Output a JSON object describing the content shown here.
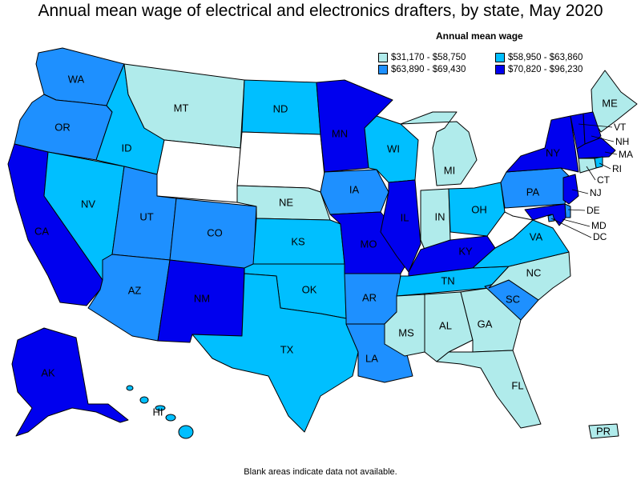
{
  "title": "Annual mean wage of electrical and electronics drafters, by state, May 2020",
  "legend": {
    "title": "Annual mean wage",
    "items": [
      {
        "label": "$31,170 - $58,750",
        "color": "#b0ebeb"
      },
      {
        "label": "$58,950 - $63,860",
        "color": "#00bfff"
      },
      {
        "label": "$63,890 - $69,430",
        "color": "#1e90ff"
      },
      {
        "label": "$70,820 - $96,230",
        "color": "#0000ee"
      }
    ]
  },
  "footnote": "Blank areas indicate data not available.",
  "colors": {
    "no_data": "#ffffff",
    "tier1": "#b0ebeb",
    "tier2": "#00bfff",
    "tier3": "#1e90ff",
    "tier4": "#0000ee"
  },
  "states": {
    "WA": {
      "label": "WA",
      "tier": "tier3"
    },
    "OR": {
      "label": "OR",
      "tier": "tier3"
    },
    "CA": {
      "label": "CA",
      "tier": "tier4"
    },
    "NV": {
      "label": "NV",
      "tier": "tier2"
    },
    "ID": {
      "label": "ID",
      "tier": "tier2"
    },
    "MT": {
      "label": "MT",
      "tier": "tier1"
    },
    "WY": {
      "label": "",
      "tier": "no_data"
    },
    "UT": {
      "label": "UT",
      "tier": "tier3"
    },
    "AZ": {
      "label": "AZ",
      "tier": "tier3"
    },
    "CO": {
      "label": "CO",
      "tier": "tier3"
    },
    "NM": {
      "label": "NM",
      "tier": "tier4"
    },
    "ND": {
      "label": "ND",
      "tier": "tier2"
    },
    "SD": {
      "label": "",
      "tier": "no_data"
    },
    "NE": {
      "label": "NE",
      "tier": "tier1"
    },
    "KS": {
      "label": "KS",
      "tier": "tier2"
    },
    "OK": {
      "label": "OK",
      "tier": "tier2"
    },
    "TX": {
      "label": "TX",
      "tier": "tier2"
    },
    "MN": {
      "label": "MN",
      "tier": "tier4"
    },
    "IA": {
      "label": "IA",
      "tier": "tier3"
    },
    "MO": {
      "label": "MO",
      "tier": "tier4"
    },
    "AR": {
      "label": "AR",
      "tier": "tier3"
    },
    "LA": {
      "label": "LA",
      "tier": "tier3"
    },
    "WI": {
      "label": "WI",
      "tier": "tier2"
    },
    "IL": {
      "label": "IL",
      "tier": "tier4"
    },
    "MI": {
      "label": "MI",
      "tier": "tier1"
    },
    "IN": {
      "label": "IN",
      "tier": "tier1"
    },
    "OH": {
      "label": "OH",
      "tier": "tier2"
    },
    "KY": {
      "label": "KY",
      "tier": "tier4"
    },
    "TN": {
      "label": "TN",
      "tier": "tier2"
    },
    "MS": {
      "label": "MS",
      "tier": "tier1"
    },
    "AL": {
      "label": "AL",
      "tier": "tier1"
    },
    "GA": {
      "label": "GA",
      "tier": "tier1"
    },
    "FL": {
      "label": "FL",
      "tier": "tier1"
    },
    "SC": {
      "label": "SC",
      "tier": "tier3"
    },
    "NC": {
      "label": "NC",
      "tier": "tier1"
    },
    "VA": {
      "label": "VA",
      "tier": "tier2"
    },
    "WV": {
      "label": "",
      "tier": "no_data"
    },
    "PA": {
      "label": "PA",
      "tier": "tier3"
    },
    "NY": {
      "label": "NY",
      "tier": "tier4"
    },
    "ME": {
      "label": "ME",
      "tier": "tier1"
    },
    "VT": {
      "label": "VT",
      "tier": "tier4"
    },
    "NH": {
      "label": "NH",
      "tier": "tier4"
    },
    "MA": {
      "label": "MA",
      "tier": "tier4"
    },
    "RI": {
      "label": "RI",
      "tier": "tier2"
    },
    "CT": {
      "label": "CT",
      "tier": "tier1"
    },
    "NJ": {
      "label": "NJ",
      "tier": "tier4"
    },
    "DE": {
      "label": "DE",
      "tier": "tier3"
    },
    "MD": {
      "label": "MD",
      "tier": "tier4"
    },
    "DC": {
      "label": "DC",
      "tier": "tier3"
    },
    "AK": {
      "label": "AK",
      "tier": "tier4"
    },
    "HI": {
      "label": "HI",
      "tier": "tier2"
    },
    "PR": {
      "label": "PR",
      "tier": "tier1"
    }
  }
}
